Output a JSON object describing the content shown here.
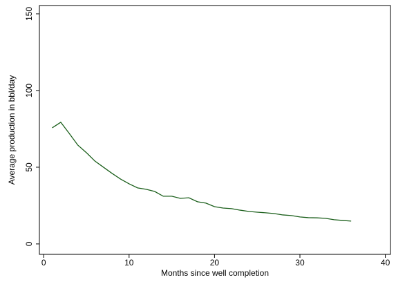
{
  "chart_data": {
    "type": "line",
    "x_label": "Months since well completion",
    "y_label": "Average production in bbl/day",
    "x": [
      1,
      2,
      3,
      4,
      5,
      6,
      7,
      8,
      9,
      10,
      11,
      12,
      13,
      14,
      15,
      16,
      17,
      18,
      19,
      20,
      21,
      22,
      23,
      24,
      25,
      26,
      27,
      28,
      29,
      30,
      31,
      32,
      33,
      34,
      35,
      36
    ],
    "series": [
      {
        "color": "#1a5e1a",
        "values": [
          75.7,
          79.3,
          72,
          64.4,
          59.5,
          54,
          50,
          46,
          42.3,
          39.2,
          36.5,
          35.6,
          34.2,
          31.1,
          31.1,
          29.7,
          30.1,
          27.5,
          26.6,
          24.3,
          23.4,
          23,
          22,
          21.2,
          20.7,
          20.3,
          19.8,
          18.9,
          18.5,
          17.6,
          17.1,
          17,
          16.7,
          15.8,
          15.3,
          14.9
        ]
      }
    ],
    "xlim": [
      -0.5,
      40.6
    ],
    "ylim": [
      -6.8,
      155.4
    ],
    "xticks": [
      0,
      10,
      20,
      30,
      40
    ],
    "yticks": [
      0,
      50,
      100,
      150
    ]
  }
}
